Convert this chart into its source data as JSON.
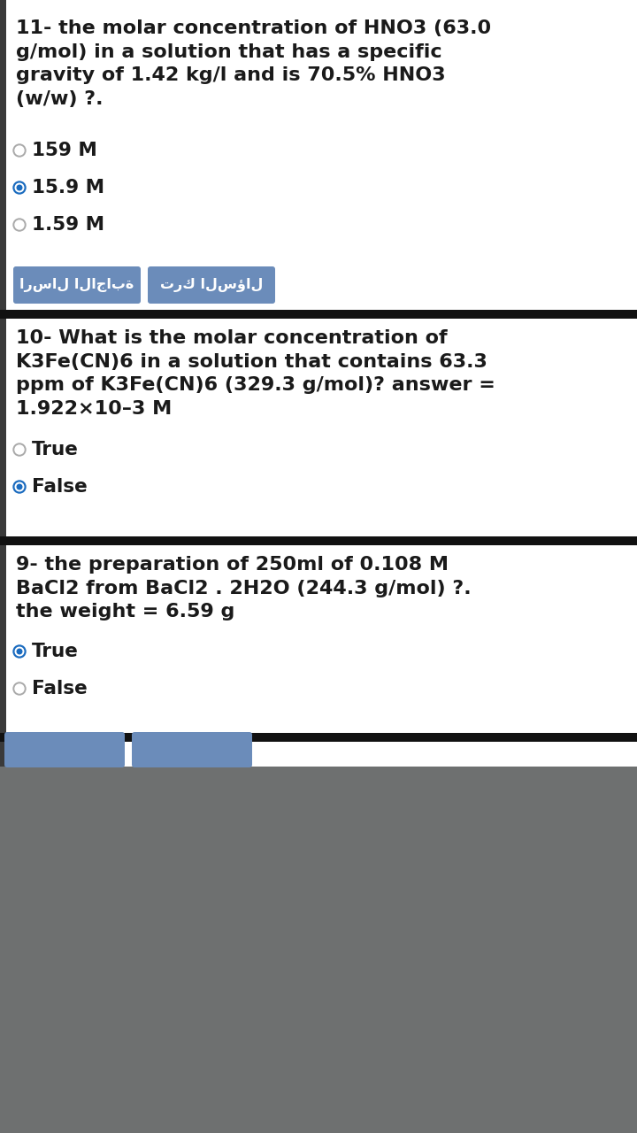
{
  "bg_color": "#ffffff",
  "gray_bg": "#6e7070",
  "left_bar_color": "#3a3a3a",
  "blue_button_color": "#6b8cba",
  "radio_selected_color": "#1a6bbf",
  "radio_unselected_color": "#aaaaaa",
  "divider_color": "#111111",
  "section1": {
    "question": "11- the molar concentration of HNO3 (63.0\ng/mol) in a solution that has a specific\ngravity of 1.42 kg/l and is 70.5% HNO3\n(w/w) ?.",
    "options": [
      {
        "text": "159 M",
        "selected": false
      },
      {
        "text": "15.9 M",
        "selected": true
      },
      {
        "text": "1.59 M",
        "selected": false
      }
    ],
    "btn_left": "ترك السؤال",
    "btn_right": "ارسال الاجابة"
  },
  "section2": {
    "question": "10- What is the molar concentration of\nK3Fe(CN)6 in a solution that contains 63.3\nppm of K3Fe(CN)6 (329.3 g/mol)? answer =\n1.922×10–3 M",
    "options": [
      {
        "text": "True",
        "selected": false
      },
      {
        "text": "False",
        "selected": true
      }
    ]
  },
  "section3": {
    "question": "9- the preparation of 250ml of 0.108 M\nBaCl2 from BaCl2 . 2H2O (244.3 g/mol) ?.\nthe weight = 6.59 g",
    "options": [
      {
        "text": "True",
        "selected": true
      },
      {
        "text": "False",
        "selected": false
      }
    ]
  }
}
